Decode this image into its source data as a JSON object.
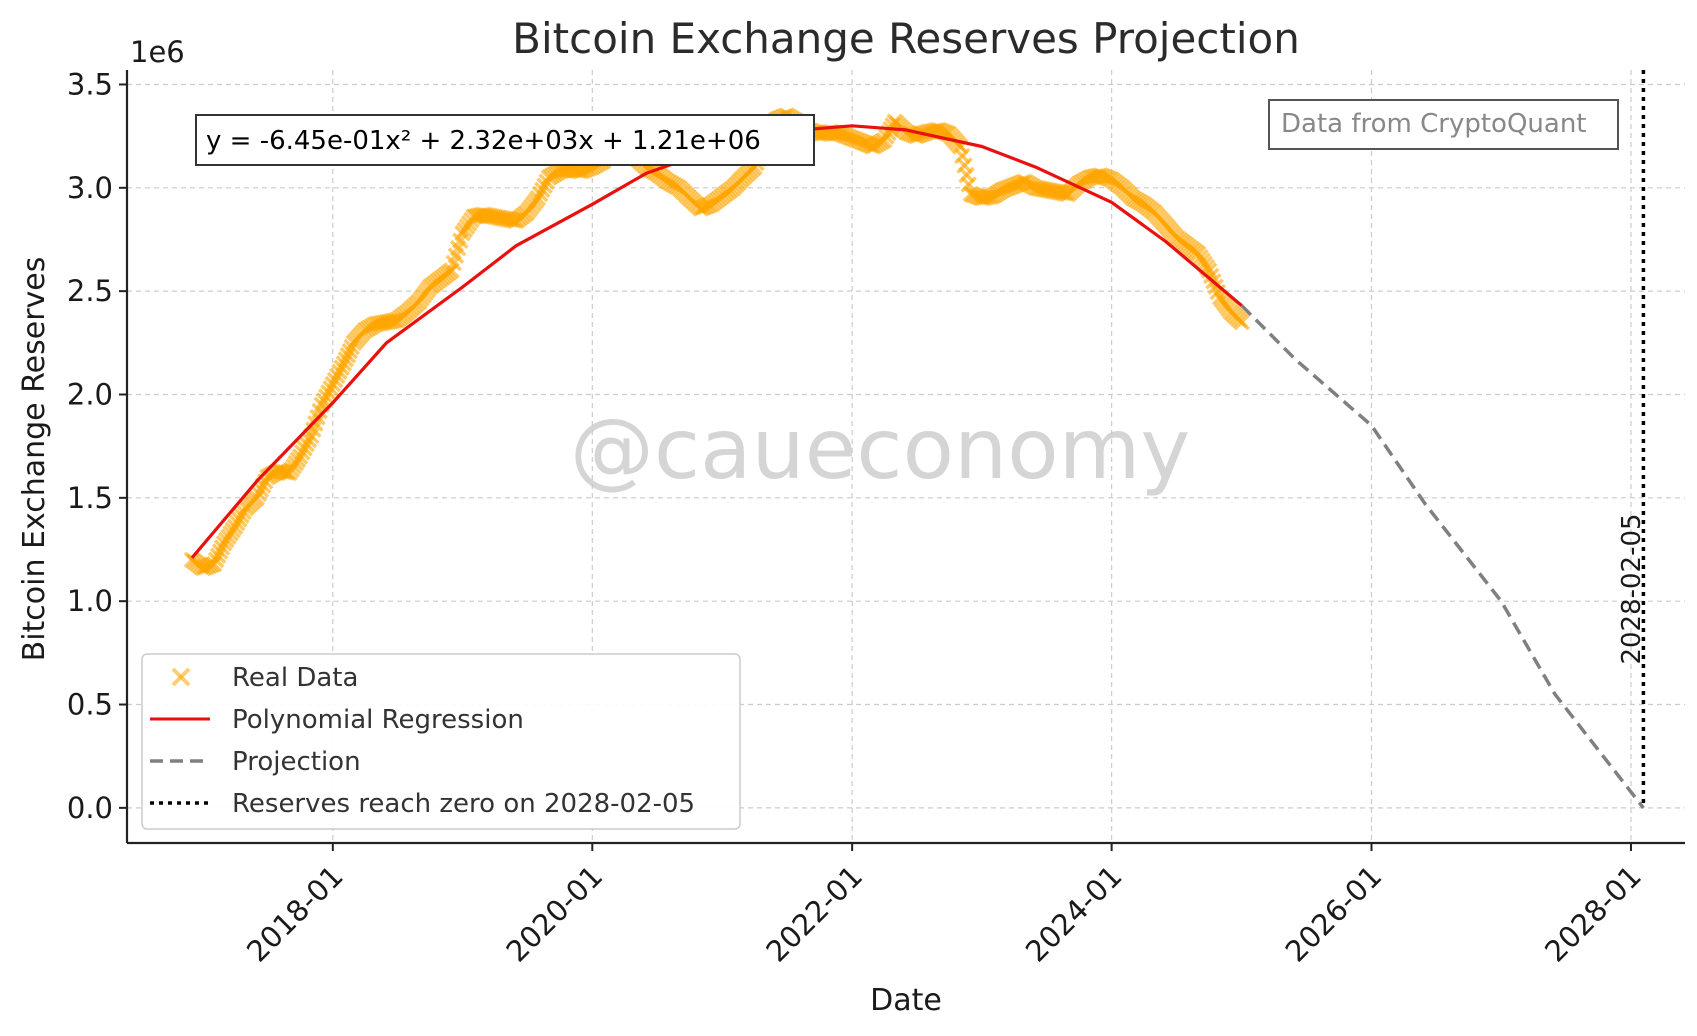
{
  "chart_data": {
    "type": "scatter",
    "title": "Bitcoin Exchange Reserves Projection",
    "xlabel": "Date",
    "ylabel": "Bitcoin Exchange Reserves",
    "y_offset_label": "1e6",
    "x_axis_type": "date",
    "xlim": [
      "2016-06-01",
      "2028-06-01"
    ],
    "ylim": [
      -170000,
      3570000
    ],
    "x_ticks": [
      "2018-01",
      "2020-01",
      "2022-01",
      "2024-01",
      "2026-01",
      "2028-01"
    ],
    "y_ticks": [
      0,
      500000,
      1000000,
      1500000,
      2000000,
      2500000,
      3000000,
      3500000
    ],
    "y_tick_labels": [
      "0.0",
      "0.5",
      "1.0",
      "1.5",
      "2.0",
      "2.5",
      "3.0",
      "3.5"
    ],
    "grid": true,
    "legend_position": "lower-left",
    "series": [
      {
        "name": "Real Data",
        "kind": "scatter",
        "color": "#FFA500",
        "marker": "x",
        "points": [
          [
            "2016-12-01",
            1200000
          ],
          [
            "2017-01-01",
            1160000
          ],
          [
            "2017-02-01",
            1180000
          ],
          [
            "2017-03-01",
            1280000
          ],
          [
            "2017-04-01",
            1360000
          ],
          [
            "2017-05-01",
            1450000
          ],
          [
            "2017-06-01",
            1500000
          ],
          [
            "2017-07-01",
            1600000
          ],
          [
            "2017-08-01",
            1630000
          ],
          [
            "2017-09-01",
            1620000
          ],
          [
            "2017-10-01",
            1700000
          ],
          [
            "2017-11-01",
            1800000
          ],
          [
            "2017-12-01",
            1950000
          ],
          [
            "2018-01-01",
            2050000
          ],
          [
            "2018-02-01",
            2150000
          ],
          [
            "2018-03-01",
            2250000
          ],
          [
            "2018-04-01",
            2310000
          ],
          [
            "2018-05-01",
            2340000
          ],
          [
            "2018-06-01",
            2350000
          ],
          [
            "2018-07-01",
            2360000
          ],
          [
            "2018-08-01",
            2400000
          ],
          [
            "2018-09-01",
            2450000
          ],
          [
            "2018-10-01",
            2520000
          ],
          [
            "2018-11-01",
            2560000
          ],
          [
            "2018-12-01",
            2600000
          ],
          [
            "2019-01-01",
            2780000
          ],
          [
            "2019-02-01",
            2860000
          ],
          [
            "2019-03-01",
            2870000
          ],
          [
            "2019-04-01",
            2860000
          ],
          [
            "2019-05-01",
            2850000
          ],
          [
            "2019-06-01",
            2840000
          ],
          [
            "2019-07-01",
            2880000
          ],
          [
            "2019-08-01",
            2950000
          ],
          [
            "2019-09-01",
            3050000
          ],
          [
            "2019-10-01",
            3080000
          ],
          [
            "2019-11-01",
            3090000
          ],
          [
            "2019-12-01",
            3080000
          ],
          [
            "2020-01-01",
            3100000
          ],
          [
            "2020-02-01",
            3130000
          ],
          [
            "2020-03-01",
            3200000
          ],
          [
            "2020-04-01",
            3180000
          ],
          [
            "2020-05-01",
            3150000
          ],
          [
            "2020-06-01",
            3100000
          ],
          [
            "2020-07-01",
            3070000
          ],
          [
            "2020-08-01",
            3030000
          ],
          [
            "2020-09-01",
            3000000
          ],
          [
            "2020-10-01",
            2950000
          ],
          [
            "2020-11-01",
            2900000
          ],
          [
            "2020-12-01",
            2920000
          ],
          [
            "2021-01-01",
            2960000
          ],
          [
            "2021-02-01",
            3000000
          ],
          [
            "2021-03-01",
            3050000
          ],
          [
            "2021-04-01",
            3100000
          ],
          [
            "2021-05-01",
            3200000
          ],
          [
            "2021-06-01",
            3330000
          ],
          [
            "2021-07-01",
            3350000
          ],
          [
            "2021-08-01",
            3320000
          ],
          [
            "2021-09-01",
            3280000
          ],
          [
            "2021-10-01",
            3260000
          ],
          [
            "2021-11-01",
            3270000
          ],
          [
            "2021-12-01",
            3260000
          ],
          [
            "2022-01-01",
            3240000
          ],
          [
            "2022-02-01",
            3220000
          ],
          [
            "2022-03-01",
            3200000
          ],
          [
            "2022-04-01",
            3230000
          ],
          [
            "2022-05-01",
            3320000
          ],
          [
            "2022-06-01",
            3270000
          ],
          [
            "2022-07-01",
            3250000
          ],
          [
            "2022-08-01",
            3270000
          ],
          [
            "2022-09-01",
            3280000
          ],
          [
            "2022-10-01",
            3260000
          ],
          [
            "2022-11-01",
            3200000
          ],
          [
            "2022-12-01",
            2970000
          ],
          [
            "2023-01-01",
            2950000
          ],
          [
            "2023-02-01",
            2960000
          ],
          [
            "2023-03-01",
            2990000
          ],
          [
            "2023-04-01",
            3010000
          ],
          [
            "2023-05-01",
            3030000
          ],
          [
            "2023-06-01",
            3000000
          ],
          [
            "2023-07-01",
            2990000
          ],
          [
            "2023-08-01",
            2980000
          ],
          [
            "2023-09-01",
            2970000
          ],
          [
            "2023-10-01",
            3020000
          ],
          [
            "2023-11-01",
            3050000
          ],
          [
            "2023-12-01",
            3060000
          ],
          [
            "2024-01-01",
            3040000
          ],
          [
            "2024-02-01",
            3000000
          ],
          [
            "2024-03-01",
            2950000
          ],
          [
            "2024-04-01",
            2920000
          ],
          [
            "2024-05-01",
            2880000
          ],
          [
            "2024-06-01",
            2820000
          ],
          [
            "2024-07-01",
            2760000
          ],
          [
            "2024-08-01",
            2720000
          ],
          [
            "2024-09-01",
            2680000
          ],
          [
            "2024-10-01",
            2600000
          ],
          [
            "2024-11-01",
            2470000
          ],
          [
            "2024-12-01",
            2400000
          ],
          [
            "2025-01-01",
            2350000
          ]
        ]
      },
      {
        "name": "Polynomial Regression",
        "kind": "line",
        "color": "#E8110F",
        "x_range": [
          "2016-12-01",
          "2025-01-01"
        ],
        "points": [
          [
            "2016-12-01",
            1210000
          ],
          [
            "2017-06-01",
            1580000
          ],
          [
            "2018-01-01",
            1960000
          ],
          [
            "2018-06-01",
            2250000
          ],
          [
            "2019-01-01",
            2520000
          ],
          [
            "2019-06-01",
            2720000
          ],
          [
            "2020-01-01",
            2920000
          ],
          [
            "2020-06-01",
            3070000
          ],
          [
            "2021-01-01",
            3200000
          ],
          [
            "2021-06-01",
            3270000
          ],
          [
            "2022-01-01",
            3300000
          ],
          [
            "2022-06-01",
            3280000
          ],
          [
            "2023-01-01",
            3200000
          ],
          [
            "2023-06-01",
            3100000
          ],
          [
            "2024-01-01",
            2930000
          ],
          [
            "2024-06-01",
            2740000
          ],
          [
            "2025-01-01",
            2430000
          ]
        ]
      },
      {
        "name": "Projection",
        "kind": "dashed-line",
        "color": "#808080",
        "points": [
          [
            "2025-01-01",
            2430000
          ],
          [
            "2025-06-01",
            2170000
          ],
          [
            "2026-01-01",
            1850000
          ],
          [
            "2026-06-01",
            1470000
          ],
          [
            "2027-01-01",
            1000000
          ],
          [
            "2027-06-01",
            550000
          ],
          [
            "2028-02-05",
            0
          ]
        ]
      },
      {
        "name": "Reserves reach zero on 2028-02-05",
        "kind": "vertical-dotted-line",
        "color": "#000000",
        "x": "2028-02-05"
      }
    ],
    "annotations": {
      "equation": "y = -6.45e-01x² + 2.32e+03x + 1.21e+06",
      "source": "Data from CryptoQuant",
      "vline_label": "2028-02-05",
      "watermark": "@caueconomy"
    }
  }
}
